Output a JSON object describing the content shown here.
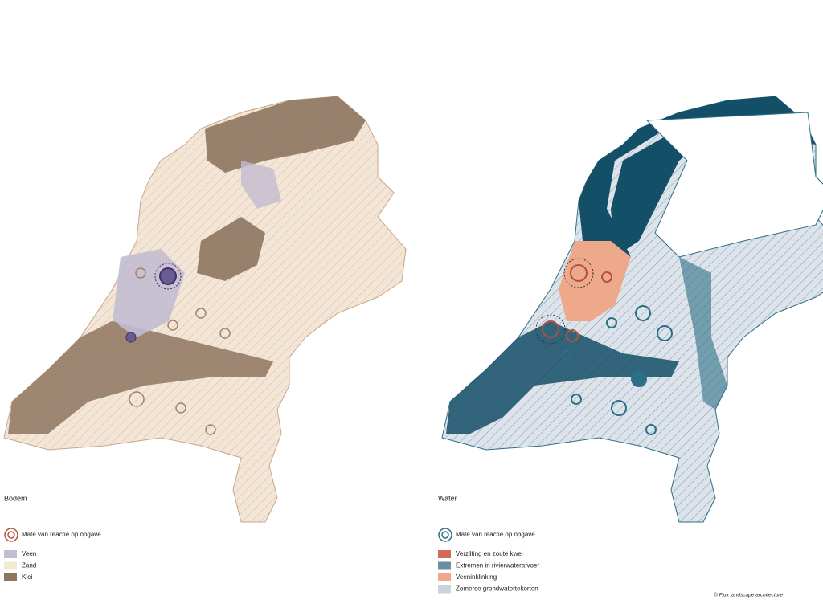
{
  "maps": [
    {
      "title": "Bodem",
      "legend": {
        "marker": "Mate van reactie op opgave",
        "marker_color": "#b0523f",
        "items": [
          {
            "label": "Veen",
            "color": "#c2bdd0"
          },
          {
            "label": "Zand",
            "color": "#f1ebd0"
          },
          {
            "label": "Klei",
            "color": "#8e7560"
          }
        ]
      }
    },
    {
      "title": "Water",
      "legend": {
        "marker": "Mate van reactie op opgave",
        "marker_color": "#2d6f86",
        "items": [
          {
            "label": "Verzilting en zoute kwel",
            "color": "#d26a5c"
          },
          {
            "label": "Extremen in rivierwaterafvoer",
            "color": "#6d8ea0"
          },
          {
            "label": "Veeninklinking",
            "color": "#eea98b"
          },
          {
            "label": "Zomerse grondwatertekorten",
            "color": "#c9d3de"
          }
        ]
      }
    }
  ],
  "credit": "© Flux landscape architecture"
}
